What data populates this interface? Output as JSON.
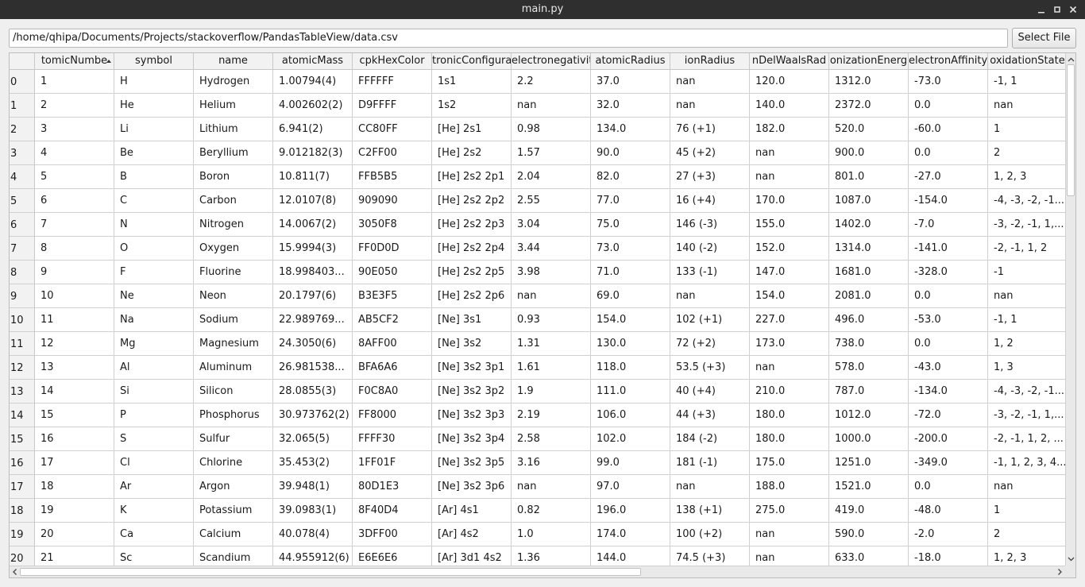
{
  "window": {
    "title": "main.py"
  },
  "toolbar": {
    "path_value": "/home/qhipa/Documents/Projects/stackoverflow/PandasTableView/data.csv",
    "select_file_label": "Select File"
  },
  "table": {
    "headers": [
      {
        "label": "atomicNumber",
        "visible": "tomicNumbe",
        "sorted": "ascending"
      },
      {
        "label": "symbol",
        "visible": "symbol"
      },
      {
        "label": "name",
        "visible": "name"
      },
      {
        "label": "atomicMass",
        "visible": "atomicMass"
      },
      {
        "label": "cpkHexColor",
        "visible": "cpkHexColor"
      },
      {
        "label": "electronicConfiguration",
        "visible": "tronicConfigura"
      },
      {
        "label": "electronegativity",
        "visible": "electronegativit"
      },
      {
        "label": "atomicRadius",
        "visible": "atomicRadius"
      },
      {
        "label": "ionRadius",
        "visible": "ionRadius"
      },
      {
        "label": "vanDelWaalsRadius",
        "visible": "nDelWaalsRad"
      },
      {
        "label": "ionizationEnergy",
        "visible": "onizationEnerg"
      },
      {
        "label": "electronAffinity",
        "visible": "electronAffinity"
      },
      {
        "label": "oxidationStates",
        "visible": "oxidationState"
      }
    ],
    "row_labels": [
      "0",
      "1",
      "2",
      "3",
      "4",
      "5",
      "6",
      "7",
      "8",
      "9",
      "10",
      "11",
      "12",
      "13",
      "14",
      "15",
      "16",
      "17",
      "18",
      "19",
      "20"
    ],
    "rows": [
      [
        "1",
        "H",
        "Hydrogen",
        "1.00794(4)",
        "FFFFFF",
        "1s1",
        "2.2",
        "37.0",
        "nan",
        "120.0",
        "1312.0",
        "-73.0",
        "-1, 1"
      ],
      [
        "2",
        "He",
        "Helium",
        "4.002602(2)",
        "D9FFFF",
        "1s2",
        "nan",
        "32.0",
        "nan",
        "140.0",
        "2372.0",
        "0.0",
        "nan"
      ],
      [
        "3",
        "Li",
        "Lithium",
        "6.941(2)",
        "CC80FF",
        "[He] 2s1",
        "0.98",
        "134.0",
        "76 (+1)",
        "182.0",
        "520.0",
        "-60.0",
        "1"
      ],
      [
        "4",
        "Be",
        "Beryllium",
        "9.012182(3)",
        "C2FF00",
        "[He] 2s2",
        "1.57",
        "90.0",
        "45 (+2)",
        "nan",
        "900.0",
        "0.0",
        "2"
      ],
      [
        "5",
        "B",
        "Boron",
        "10.811(7)",
        "FFB5B5",
        "[He] 2s2 2p1",
        "2.04",
        "82.0",
        "27 (+3)",
        "nan",
        "801.0",
        "-27.0",
        "1, 2, 3"
      ],
      [
        "6",
        "C",
        "Carbon",
        "12.0107(8)",
        "909090",
        "[He] 2s2 2p2",
        "2.55",
        "77.0",
        "16 (+4)",
        "170.0",
        "1087.0",
        "-154.0",
        "-4, -3, -2, -1..."
      ],
      [
        "7",
        "N",
        "Nitrogen",
        "14.0067(2)",
        "3050F8",
        "[He] 2s2 2p3",
        "3.04",
        "75.0",
        "146 (-3)",
        "155.0",
        "1402.0",
        "-7.0",
        "-3, -2, -1, 1,..."
      ],
      [
        "8",
        "O",
        "Oxygen",
        "15.9994(3)",
        "FF0D0D",
        "[He] 2s2 2p4",
        "3.44",
        "73.0",
        "140 (-2)",
        "152.0",
        "1314.0",
        "-141.0",
        "-2, -1, 1, 2"
      ],
      [
        "9",
        "F",
        "Fluorine",
        "18.998403...",
        "90E050",
        "[He] 2s2 2p5",
        "3.98",
        "71.0",
        "133 (-1)",
        "147.0",
        "1681.0",
        "-328.0",
        "-1"
      ],
      [
        "10",
        "Ne",
        "Neon",
        "20.1797(6)",
        "B3E3F5",
        "[He] 2s2 2p6",
        "nan",
        "69.0",
        "nan",
        "154.0",
        "2081.0",
        "0.0",
        "nan"
      ],
      [
        "11",
        "Na",
        "Sodium",
        "22.989769...",
        "AB5CF2",
        "[Ne] 3s1",
        "0.93",
        "154.0",
        "102 (+1)",
        "227.0",
        "496.0",
        "-53.0",
        "-1, 1"
      ],
      [
        "12",
        "Mg",
        "Magnesium",
        "24.3050(6)",
        "8AFF00",
        "[Ne] 3s2",
        "1.31",
        "130.0",
        "72 (+2)",
        "173.0",
        "738.0",
        "0.0",
        "1, 2"
      ],
      [
        "13",
        "Al",
        "Aluminum",
        "26.981538...",
        "BFA6A6",
        "[Ne] 3s2 3p1",
        "1.61",
        "118.0",
        "53.5 (+3)",
        "nan",
        "578.0",
        "-43.0",
        "1, 3"
      ],
      [
        "14",
        "Si",
        "Silicon",
        "28.0855(3)",
        "F0C8A0",
        "[Ne] 3s2 3p2",
        "1.9",
        "111.0",
        "40 (+4)",
        "210.0",
        "787.0",
        "-134.0",
        "-4, -3, -2, -1..."
      ],
      [
        "15",
        "P",
        "Phosphorus",
        "30.973762(2)",
        "FF8000",
        "[Ne] 3s2 3p3",
        "2.19",
        "106.0",
        "44 (+3)",
        "180.0",
        "1012.0",
        "-72.0",
        "-3, -2, -1, 1,..."
      ],
      [
        "16",
        "S",
        "Sulfur",
        "32.065(5)",
        "FFFF30",
        "[Ne] 3s2 3p4",
        "2.58",
        "102.0",
        "184 (-2)",
        "180.0",
        "1000.0",
        "-200.0",
        "-2, -1, 1, 2, ..."
      ],
      [
        "17",
        "Cl",
        "Chlorine",
        "35.453(2)",
        "1FF01F",
        "[Ne] 3s2 3p5",
        "3.16",
        "99.0",
        "181 (-1)",
        "175.0",
        "1251.0",
        "-349.0",
        "-1, 1, 2, 3, 4..."
      ],
      [
        "18",
        "Ar",
        "Argon",
        "39.948(1)",
        "80D1E3",
        "[Ne] 3s2 3p6",
        "nan",
        "97.0",
        "nan",
        "188.0",
        "1521.0",
        "0.0",
        "nan"
      ],
      [
        "19",
        "K",
        "Potassium",
        "39.0983(1)",
        "8F40D4",
        "[Ar] 4s1",
        "0.82",
        "196.0",
        "138 (+1)",
        "275.0",
        "419.0",
        "-48.0",
        "1"
      ],
      [
        "20",
        "Ca",
        "Calcium",
        "40.078(4)",
        "3DFF00",
        "[Ar] 4s2",
        "1.0",
        "174.0",
        "100 (+2)",
        "nan",
        "590.0",
        "-2.0",
        "2"
      ],
      [
        "21",
        "Sc",
        "Scandium",
        "44.955912(6)",
        "E6E6E6",
        "[Ar] 3d1 4s2",
        "1.36",
        "144.0",
        "74.5 (+3)",
        "nan",
        "633.0",
        "-18.0",
        "1, 2, 3"
      ]
    ]
  }
}
